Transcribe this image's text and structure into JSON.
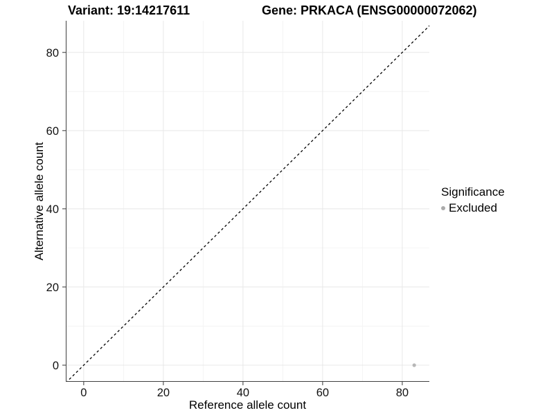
{
  "titles": {
    "variant": "Variant: 19:14217611",
    "gene": "Gene: PRKACA (ENSG00000072062)"
  },
  "chart_data": {
    "type": "scatter",
    "title": "Variant: 19:14217611    Gene: PRKACA (ENSG00000072062)",
    "xlabel": "Reference allele count",
    "ylabel": "Alternative allele count",
    "x_ticks": [
      0,
      20,
      40,
      60,
      80
    ],
    "y_ticks": [
      0,
      20,
      40,
      60,
      80
    ],
    "x_minor_ticks": [
      10,
      30,
      50,
      70
    ],
    "y_minor_ticks": [
      10,
      30,
      50,
      70
    ],
    "x_range": [
      -4.5,
      86.8
    ],
    "y_range": [
      -4.25,
      88.1
    ],
    "grid": true,
    "series": [
      {
        "name": "Excluded",
        "color": "#b7b7b7",
        "marker_radius": 2.6,
        "points": [
          {
            "x": 83,
            "y": 0
          }
        ]
      }
    ],
    "reference_line": {
      "type": "identity",
      "slope": 1,
      "intercept": 0,
      "style": "dashed",
      "color": "#000000"
    },
    "legend": {
      "title": "Significance",
      "position": "right",
      "items": [
        {
          "label": "Excluded",
          "color": "#ababab"
        }
      ]
    },
    "colors": {
      "background": "#ffffff",
      "grid_major": "#e8e8e8",
      "grid_minor": "#f4f4f4",
      "axis_line": "#3f3f3f",
      "tick_mark": "#333333",
      "tick_text": "#111111",
      "text": "#000000"
    }
  }
}
